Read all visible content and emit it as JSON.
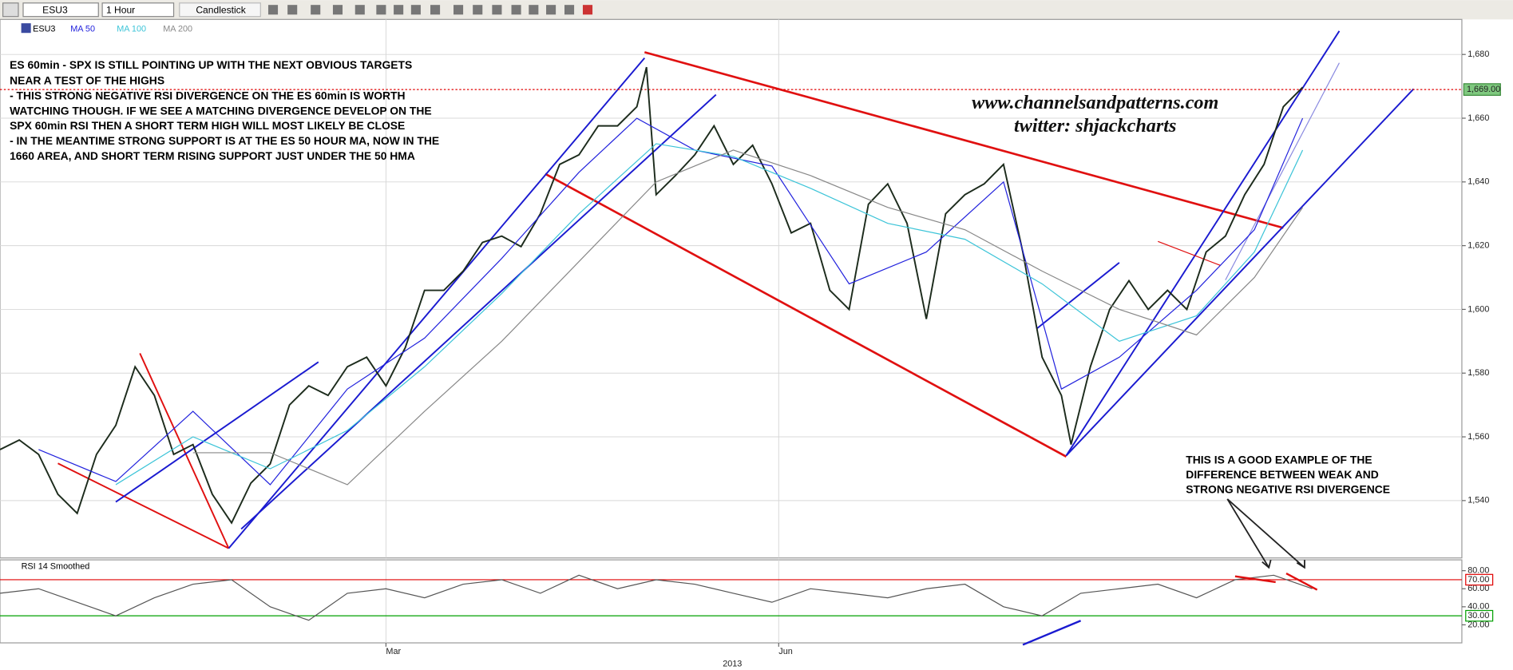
{
  "toolbar": {
    "symbol": "ESU3",
    "interval": "1 Hour",
    "chart_style": "Candlestick"
  },
  "chart_data": [
    {
      "type": "line",
      "title": "ES 60min - SPX IS STILL POINTING UP WITH THE NEXT OBVIOUS TARGETS",
      "annotations": [
        "NEAR A TEST OF THE HIGHS",
        "- THIS STRONG NEGATIVE RSI DIVERGENCE ON THE ES 60min IS WORTH",
        "WATCHING THOUGH. IF WE SEE A MATCHING DIVERGENCE DEVELOP ON THE",
        "SPX 60min RSI THEN A SHORT TERM HIGH WILL MOST LIKELY BE CLOSE",
        "- IN THE MEANTIME STRONG SUPPORT IS AT THE ES 50 HOUR MA, NOW IN THE",
        "1660 AREA, AND SHORT TERM RISING SUPPORT JUST UNDER THE 50 HMA"
      ],
      "watermark": [
        "www.channelsandpatterns.com",
        "twitter: shjackcharts"
      ],
      "note": [
        "THIS IS A GOOD EXAMPLE OF THE",
        "DIFFERENCE BETWEEN WEAK AND",
        "STRONG NEGATIVE RSI DIVERGENCE"
      ],
      "xlim": [
        0,
        1515
      ],
      "ylim": [
        1522,
        1691
      ],
      "yticks": [
        {
          "value": 1540,
          "label": "1,540"
        },
        {
          "value": 1560,
          "label": "1,560"
        },
        {
          "value": 1580,
          "label": "1,580"
        },
        {
          "value": 1600,
          "label": "1,600"
        },
        {
          "value": 1620,
          "label": "1,620"
        },
        {
          "value": 1640,
          "label": "1,640"
        },
        {
          "value": 1660,
          "label": "1,660"
        },
        {
          "value": 1680,
          "label": "1,680"
        }
      ],
      "xticks": [
        {
          "value": 400,
          "label": "Mar"
        },
        {
          "value": 807,
          "label": "Jun"
        }
      ],
      "year_label": "2013",
      "grid": true,
      "last_price": {
        "value": 1669,
        "label": "1,669.00",
        "color": "#e00000"
      },
      "series": [
        {
          "name": "ESU3",
          "color": "#1c2b1c",
          "x": [
            0,
            20,
            40,
            60,
            80,
            100,
            120,
            140,
            160,
            180,
            200,
            220,
            240,
            260,
            280,
            300,
            320,
            340,
            360,
            380,
            400,
            420,
            440,
            460,
            480,
            500,
            520,
            540,
            560,
            580,
            600,
            620,
            640,
            660,
            670,
            680,
            700,
            720,
            740,
            760,
            780,
            800,
            820,
            840,
            860,
            880,
            900,
            920,
            940,
            960,
            980,
            1000,
            1020,
            1040,
            1060,
            1080,
            1100,
            1110,
            1130,
            1150,
            1170,
            1190,
            1210,
            1230,
            1250,
            1270,
            1290,
            1310,
            1330,
            1350
          ],
          "values": [
            1556,
            1559,
            1554.5,
            1542,
            1536,
            1554.5,
            1563.6,
            1582,
            1573,
            1554.5,
            1557.6,
            1542,
            1533,
            1545.5,
            1551.5,
            1570,
            1576,
            1573,
            1582,
            1585,
            1576,
            1588,
            1606,
            1606,
            1612,
            1621,
            1623,
            1619.7,
            1630,
            1645.5,
            1648.5,
            1657.6,
            1657.6,
            1663.6,
            1676,
            1636,
            1642,
            1648.5,
            1657.6,
            1645.5,
            1651.5,
            1639.4,
            1624,
            1627,
            1606,
            1600,
            1633,
            1639.4,
            1627,
            1597,
            1630,
            1636,
            1639.4,
            1645.5,
            1618,
            1585,
            1573,
            1557.6,
            1582,
            1600,
            1609,
            1600,
            1606,
            1600,
            1618,
            1623,
            1636,
            1645.5,
            1663.6,
            1669.7
          ]
        },
        {
          "name": "MA 50",
          "color": "#2222dd",
          "x": [
            40,
            120,
            200,
            280,
            360,
            440,
            520,
            600,
            660,
            720,
            800,
            880,
            960,
            1040,
            1100,
            1160,
            1240,
            1300,
            1350
          ],
          "values": [
            1556,
            1546,
            1568,
            1545,
            1575,
            1591,
            1616,
            1643,
            1660,
            1650,
            1645,
            1608,
            1618,
            1640,
            1575,
            1585,
            1606,
            1625,
            1660
          ]
        },
        {
          "name": "MA 100",
          "color": "#3cc4d8",
          "x": [
            120,
            200,
            280,
            360,
            440,
            520,
            600,
            680,
            760,
            840,
            920,
            1000,
            1080,
            1160,
            1240,
            1300,
            1350
          ],
          "values": [
            1545,
            1560,
            1550,
            1562,
            1582,
            1605,
            1630,
            1652,
            1648,
            1638,
            1627,
            1622,
            1608,
            1590,
            1598,
            1618,
            1650
          ]
        },
        {
          "name": "MA 200",
          "color": "#888888",
          "x": [
            200,
            280,
            360,
            440,
            520,
            600,
            680,
            760,
            840,
            920,
            1000,
            1080,
            1160,
            1240,
            1300,
            1350
          ],
          "values": [
            1555,
            1555,
            1545,
            1568,
            1590,
            1615,
            1640,
            1650,
            1642,
            1632,
            1625,
            1612,
            1600,
            1592,
            1610,
            1632
          ]
        }
      ]
    },
    {
      "type": "line",
      "title": "RSI 14 Smoothed",
      "xlim": [
        0,
        1515
      ],
      "ylim": [
        0,
        92
      ],
      "yticks": [
        {
          "value": 20,
          "label": "20.00"
        },
        {
          "value": 40,
          "label": "40.00"
        },
        {
          "value": 60,
          "label": "60.00"
        },
        {
          "value": 80,
          "label": "80.00"
        }
      ],
      "levels": [
        {
          "value": 70,
          "label": "70.00",
          "color": "#e00000"
        },
        {
          "value": 30,
          "label": "30.00",
          "color": "#00a000"
        }
      ],
      "series": [
        {
          "name": "RSI 14 Smoothed",
          "color": "#555555",
          "x": [
            0,
            40,
            80,
            120,
            160,
            200,
            240,
            280,
            320,
            360,
            400,
            440,
            480,
            520,
            560,
            600,
            640,
            680,
            720,
            760,
            800,
            840,
            880,
            920,
            960,
            1000,
            1040,
            1080,
            1120,
            1160,
            1200,
            1240,
            1280,
            1320,
            1360
          ],
          "values": [
            55,
            60,
            45,
            30,
            50,
            65,
            70,
            40,
            25,
            55,
            60,
            50,
            65,
            70,
            55,
            75,
            60,
            70,
            65,
            55,
            45,
            60,
            55,
            50,
            60,
            65,
            40,
            30,
            55,
            60,
            65,
            50,
            70,
            75,
            60
          ]
        }
      ]
    }
  ]
}
